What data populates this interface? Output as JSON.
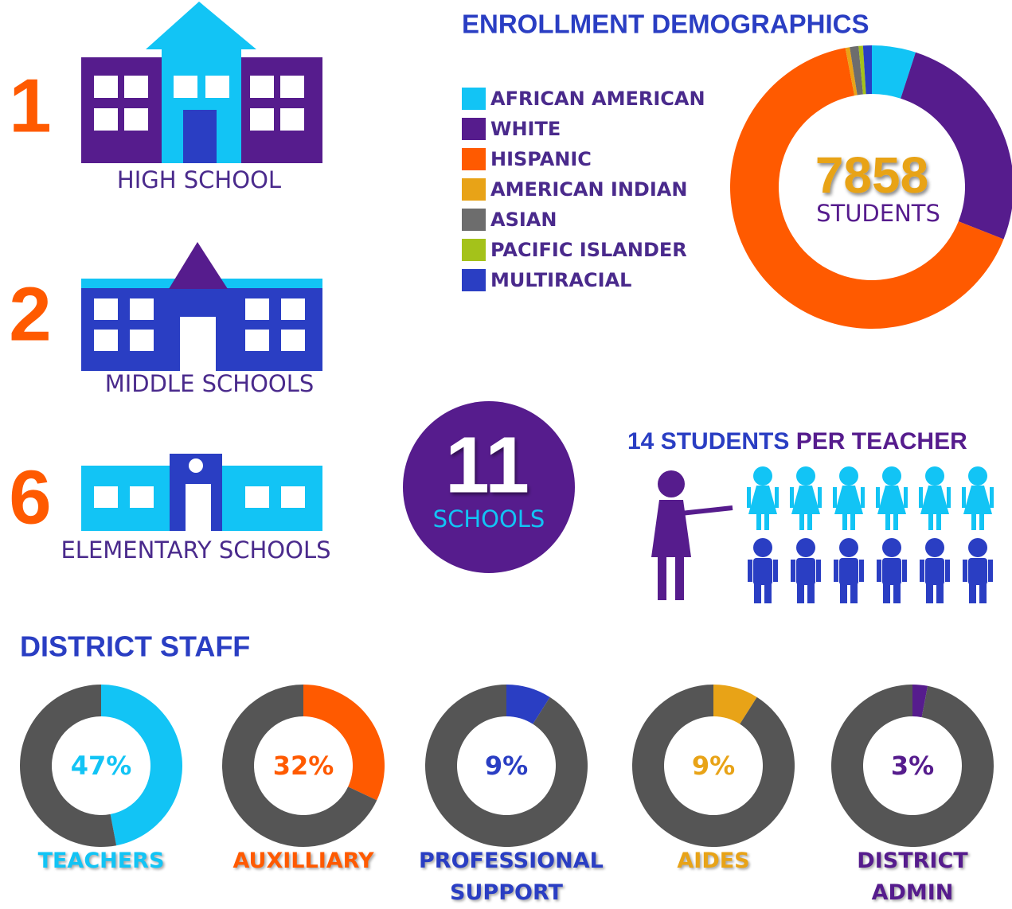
{
  "schools": [
    {
      "count": 1,
      "label": "HIGH SCHOOL"
    },
    {
      "count": 2,
      "label": "MIDDLE SCHOOLS"
    },
    {
      "count": 6,
      "label": "ELEMENTARY SCHOOLS"
    }
  ],
  "total_schools": {
    "count": 11,
    "label": "SCHOOLS"
  },
  "ratio": {
    "lead": "14 STUDENTS",
    "rest": "PER TEACHER"
  },
  "staff_title": "DISTRICT STAFF",
  "chart_data": [
    {
      "type": "donut",
      "title": "ENROLLMENT DEMOGRAPHICS",
      "center_value": 7858,
      "center_label": "STUDENTS",
      "categories": [
        "AFRICAN AMERICAN",
        "WHITE",
        "HISPANIC",
        "AMERICAN INDIAN",
        "ASIAN",
        "PACIFIC ISLANDER",
        "MULTIRACIAL"
      ],
      "values": [
        5,
        26,
        66,
        0.5,
        1,
        0.5,
        1
      ],
      "colors": [
        "#12c4f5",
        "#561c8d",
        "#ff5a00",
        "#e8a317",
        "#6d6d6d",
        "#a4c21a",
        "#2a3ec3"
      ]
    },
    {
      "type": "donut",
      "title": "TEACHERS",
      "values": [
        47
      ],
      "value_labels": [
        "47%"
      ],
      "colors": [
        "#12c4f5"
      ]
    },
    {
      "type": "donut",
      "title": "AUXILLIARY",
      "values": [
        32
      ],
      "value_labels": [
        "32%"
      ],
      "colors": [
        "#ff5a00"
      ]
    },
    {
      "type": "donut",
      "title": "PROFESSIONAL SUPPORT",
      "values": [
        9
      ],
      "value_labels": [
        "9%"
      ],
      "colors": [
        "#2a3ec3"
      ]
    },
    {
      "type": "donut",
      "title": "AIDES",
      "values": [
        9
      ],
      "value_labels": [
        "9%"
      ],
      "colors": [
        "#e8a317"
      ]
    },
    {
      "type": "donut",
      "title": "DISTRICT ADMIN",
      "values": [
        3
      ],
      "value_labels": [
        "3%"
      ],
      "colors": [
        "#561c8d"
      ]
    }
  ]
}
